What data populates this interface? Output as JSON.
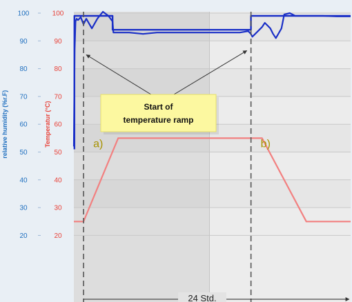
{
  "chart_data": {
    "type": "line",
    "y_axes": {
      "humidity": {
        "label": "relative humidity (%r.F)",
        "color": "#1f6fbf",
        "ticks": [
          "100",
          "90",
          "80",
          "70",
          "60",
          "50",
          "40",
          "30",
          "20"
        ],
        "range": [
          20,
          100
        ]
      },
      "temperature": {
        "label": "Temperatur (°C)",
        "color": "#e8433a",
        "ticks": [
          "100",
          "90",
          "80",
          "70",
          "60",
          "50",
          "40",
          "30",
          "20"
        ],
        "range": [
          20,
          100
        ]
      }
    },
    "x_range": [
      0,
      100
    ],
    "grid": true,
    "series": [
      {
        "id": "humidity",
        "color": "#1a2fc7",
        "x": [
          0,
          0.3,
          0.6,
          1.0,
          1.5,
          2.5,
          3.5,
          4.5,
          6.5,
          8.5,
          10.5,
          12.5,
          14.0,
          14.3,
          15,
          20,
          25,
          30,
          35,
          40,
          45,
          50,
          55,
          60,
          63,
          64,
          64.5,
          66,
          68,
          69,
          70,
          71,
          72,
          73,
          75,
          76,
          78,
          80,
          85,
          90,
          95,
          100
        ],
        "y": [
          52,
          87,
          97,
          98,
          97.5,
          98.5,
          96,
          98,
          94.5,
          98,
          100.5,
          99,
          97,
          93,
          93,
          93,
          92.5,
          93,
          93,
          93,
          93,
          93,
          93,
          93,
          93.5,
          92.5,
          91.5,
          93,
          95,
          96.5,
          95.5,
          94.5,
          92.5,
          91,
          94.5,
          99.5,
          100,
          99,
          99,
          99,
          98.8,
          98.8
        ]
      },
      {
        "id": "temperature",
        "color": "#f28080",
        "x": [
          0,
          3.5,
          16,
          56,
          68,
          84,
          100
        ],
        "y": [
          25,
          25,
          55,
          55,
          55,
          25,
          25
        ]
      },
      {
        "id": "setpoint",
        "color": "#1a2fc7",
        "x": [
          0.2,
          0.2,
          14,
          14,
          64,
          64,
          67.5,
          67.5,
          100
        ],
        "y": [
          51,
          99,
          99,
          94,
          94,
          99,
          99,
          99,
          99
        ]
      }
    ],
    "markers": [
      {
        "id": "a",
        "x": 3.5,
        "label": "a)",
        "label_x": 7,
        "label_y": 53
      },
      {
        "id": "b",
        "x": 64,
        "label": "b)",
        "label_x": 67.5,
        "label_y": 53
      }
    ],
    "bands": [
      {
        "from": 0,
        "to": 49,
        "shade": "#dddddd"
      },
      {
        "from": 49,
        "to": 100,
        "shade": "#ececec"
      }
    ],
    "callout": {
      "line1": "Start of",
      "line2": "temperature ramp",
      "anchor_x": 32,
      "anchor_y": 66,
      "arrow_targets": [
        {
          "x": 4.5,
          "y": 85
        },
        {
          "x": 62.5,
          "y": 86.5
        }
      ]
    },
    "duration": {
      "label": "24 Std.",
      "from_x": 3.5,
      "to_x": 100
    }
  }
}
